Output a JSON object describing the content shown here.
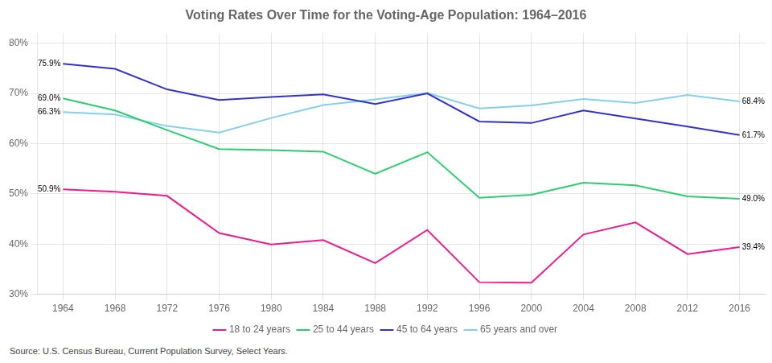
{
  "chart_data": {
    "type": "line",
    "title": "Voting Rates Over Time for the Voting-Age Population: 1964–2016",
    "source": "Source: U.S. Census Bureau, Current Population Survey, Select Years.",
    "x": [
      1964,
      1968,
      1972,
      1976,
      1980,
      1984,
      1988,
      1992,
      1996,
      2000,
      2004,
      2008,
      2012,
      2016
    ],
    "series": [
      {
        "name": "18 to 24 years",
        "color": "#e91e8c",
        "values": [
          50.9,
          50.4,
          49.6,
          42.2,
          39.9,
          40.8,
          36.2,
          42.8,
          32.4,
          32.3,
          41.9,
          44.3,
          38.0,
          39.4
        ]
      },
      {
        "name": "25 to 44 years",
        "color": "#2ecc71",
        "values": [
          69.0,
          66.6,
          62.7,
          58.9,
          58.7,
          58.4,
          54.0,
          58.3,
          49.2,
          49.8,
          52.2,
          51.7,
          49.5,
          49.0
        ]
      },
      {
        "name": "45 to 64 years",
        "color": "#3333cc",
        "values": [
          75.9,
          74.9,
          70.8,
          68.7,
          69.3,
          69.8,
          67.9,
          70.0,
          64.4,
          64.1,
          66.6,
          65.0,
          63.4,
          61.7
        ]
      },
      {
        "name": "65 years and over",
        "color": "#87ceeb",
        "values": [
          66.3,
          65.8,
          63.5,
          62.2,
          65.1,
          67.7,
          68.8,
          70.1,
          67.0,
          67.6,
          68.9,
          68.1,
          69.7,
          68.4
        ]
      }
    ],
    "xlim": [
      1962,
      2018
    ],
    "xticks": [
      1964,
      1968,
      1972,
      1976,
      1980,
      1984,
      1988,
      1992,
      1996,
      2000,
      2004,
      2008,
      2012,
      2016
    ],
    "ylim": [
      30,
      82
    ],
    "yticks": [
      {
        "value": 30,
        "label": "30%"
      },
      {
        "value": 40,
        "label": "40%"
      },
      {
        "value": 50,
        "label": "50%"
      },
      {
        "value": 60,
        "label": "60%"
      },
      {
        "value": 70,
        "label": "70%"
      },
      {
        "value": 80,
        "label": "80%"
      }
    ],
    "annotations": [
      {
        "x": 1964,
        "y": 75.9,
        "text": "75.9%",
        "side": "left"
      },
      {
        "x": 1964,
        "y": 69.0,
        "text": "69.0%",
        "side": "left"
      },
      {
        "x": 1964,
        "y": 66.3,
        "text": "66.3%",
        "side": "left"
      },
      {
        "x": 1964,
        "y": 50.9,
        "text": "50.9%",
        "side": "left"
      },
      {
        "x": 2016,
        "y": 68.4,
        "text": "68.4%",
        "side": "right"
      },
      {
        "x": 2016,
        "y": 61.7,
        "text": "61.7%",
        "side": "right"
      },
      {
        "x": 2016,
        "y": 49.0,
        "text": "49.0%",
        "side": "right"
      },
      {
        "x": 2016,
        "y": 39.4,
        "text": "39.4%",
        "side": "right"
      }
    ],
    "grid": true,
    "legend": "bottom"
  }
}
